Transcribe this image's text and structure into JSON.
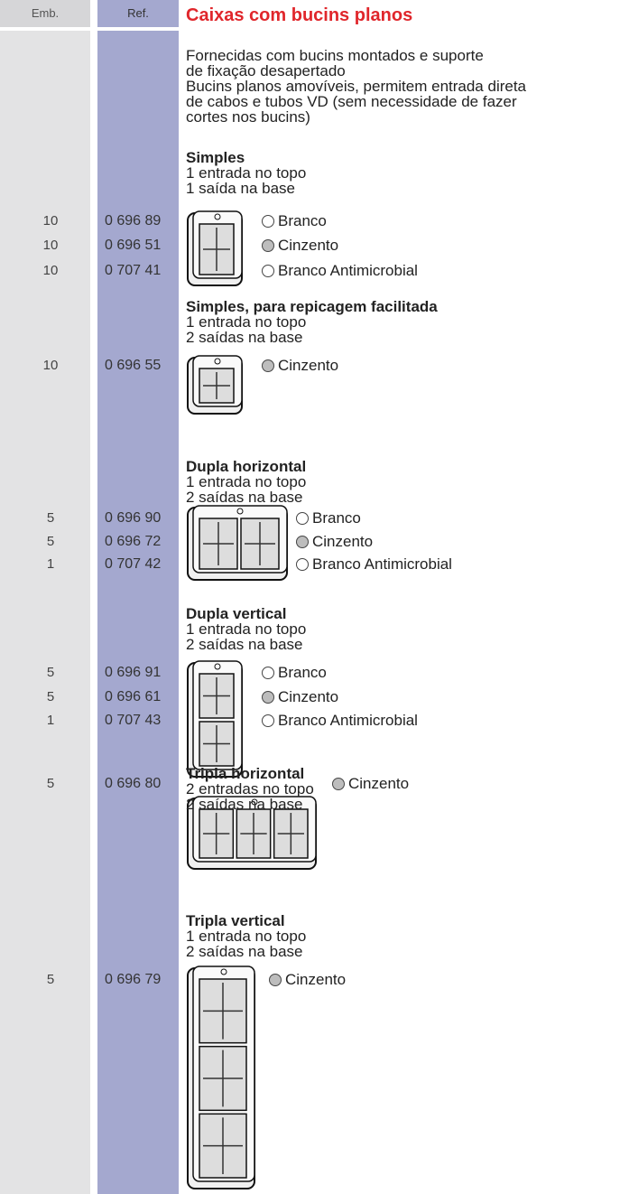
{
  "header": {
    "emb": "Emb.",
    "ref": "Ref.",
    "title": "Caixas com bucins planos"
  },
  "intro": [
    "Fornecidas com bucins montados e suporte",
    "de fixação desapertado",
    "Bucins planos amovíveis, permitem entrada direta",
    "de cabos e tubos VD (sem necessidade de fazer",
    "cortes nos bucins)"
  ],
  "sections": [
    {
      "heading": "Simples",
      "lines": [
        "1 entrada no topo",
        "1 saída na base"
      ],
      "rows": [
        {
          "emb": 10,
          "ref": "0 696 89",
          "option": "Branco",
          "swatch": "#ffffff"
        },
        {
          "emb": 10,
          "ref": "0 696 51",
          "option": "Cinzento",
          "swatch": "#bdbdbd"
        },
        {
          "emb": 10,
          "ref": "0 707 41",
          "option": "Branco Antimicrobial",
          "swatch": "#ffffff"
        }
      ]
    },
    {
      "heading": "Simples, para repicagem facilitada",
      "lines": [
        "1 entrada no topo",
        "2 saídas na base"
      ],
      "rows": [
        {
          "emb": 10,
          "ref": "0 696 55",
          "option": "Cinzento",
          "swatch": "#bdbdbd"
        }
      ]
    },
    {
      "heading": "Dupla horizontal",
      "lines": [
        "1 entrada no topo",
        "2 saídas na base"
      ],
      "rows": [
        {
          "emb": 5,
          "ref": "0 696 90",
          "option": "Branco",
          "swatch": "#ffffff"
        },
        {
          "emb": 5,
          "ref": "0 696 72",
          "option": "Cinzento",
          "swatch": "#bdbdbd"
        },
        {
          "emb": 1,
          "ref": "0 707 42",
          "option": "Branco Antimicrobial",
          "swatch": "#ffffff"
        }
      ]
    },
    {
      "heading": "Dupla vertical",
      "lines": [
        "1 entrada no topo",
        "2 saídas na base"
      ],
      "rows": [
        {
          "emb": 5,
          "ref": "0 696 91",
          "option": "Branco",
          "swatch": "#ffffff"
        },
        {
          "emb": 5,
          "ref": "0 696 61",
          "option": "Cinzento",
          "swatch": "#bdbdbd"
        },
        {
          "emb": 1,
          "ref": "0 707 43",
          "option": "Branco Antimicrobial",
          "swatch": "#ffffff"
        }
      ]
    },
    {
      "heading": "Tripla horizontal",
      "lines": [
        "2 entradas no topo",
        "2 saídas na base"
      ],
      "rows": [
        {
          "emb": 5,
          "ref": "0 696 80",
          "option": "Cinzento",
          "swatch": "#bdbdbd"
        }
      ]
    },
    {
      "heading": "Tripla vertical",
      "lines": [
        "1 entrada no topo",
        "2 saídas na base"
      ],
      "rows": [
        {
          "emb": 5,
          "ref": "0 696 79",
          "option": "Cinzento",
          "swatch": "#bdbdbd"
        }
      ]
    }
  ]
}
